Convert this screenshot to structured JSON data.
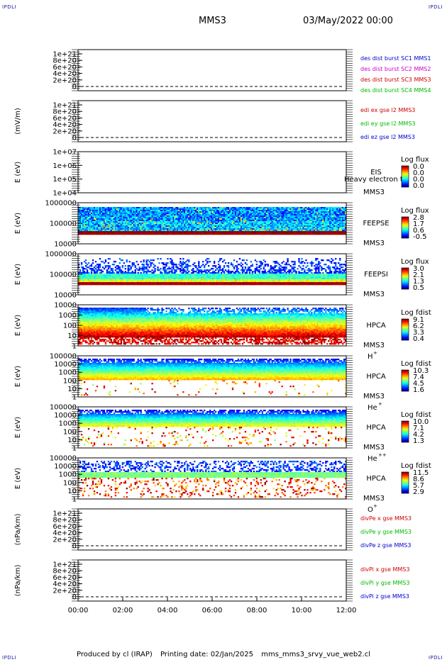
{
  "corners": {
    "top_left": "IPDLI",
    "top_right": "IPDLI",
    "bottom_left": "IPDLI",
    "bottom_right": "IPDLI"
  },
  "header": {
    "spacecraft": "MMS3",
    "datetime": "03/May/2022 00:00"
  },
  "footer": {
    "producer": "Produced by cl (IRAP)",
    "printing_date": "Printing date: 02/Jan/2025",
    "script": "mms_mms3_srvy_vue_web2.cl"
  },
  "colors": {
    "red": "#cc0000",
    "green": "#00bb00",
    "blue": "#0000cc",
    "magenta": "#cc00cc"
  },
  "chart_data": [
    {
      "type": "line",
      "id": "des-dist",
      "ylabel": "",
      "y_ticks": [
        "1e+21",
        "8e+20",
        "6e+20",
        "4e+20",
        "2e+20",
        "0"
      ],
      "legend": [
        {
          "label": "des dist burst SC1 MMS1",
          "color": "#0000cc"
        },
        {
          "label": "des dist burst SC2 MMS2",
          "color": "#cc00cc"
        },
        {
          "label": "des dist burst SC3 MMS3",
          "color": "#cc0000"
        },
        {
          "label": "des dist burst SC4 MMS4",
          "color": "#00bb00"
        }
      ]
    },
    {
      "type": "line",
      "id": "edi",
      "ylabel": "(mV/m)",
      "y_ticks": [
        "1e+21",
        "8e+20",
        "6e+20",
        "4e+20",
        "2e+20",
        "0"
      ],
      "legend": [
        {
          "label": "edi ex gse l2 MMS3",
          "color": "#cc0000"
        },
        {
          "label": "edi ey gse l2 MMS3",
          "color": "#00bb00"
        },
        {
          "label": "edi ez gse l2 MMS3",
          "color": "#0000cc"
        }
      ]
    },
    {
      "type": "heatmap",
      "id": "eis",
      "ylabel": "E (eV)",
      "y_ticks": [
        "1e+07",
        "1e+06",
        "1e+05",
        "1e+04"
      ],
      "instrument": [
        "EIS",
        "MMS3"
      ],
      "overlay_text": "Heavy electron to",
      "colorbar": {
        "title": "Log flux",
        "labels": [
          "0.0",
          "0.0",
          "0.0",
          "0.0"
        ]
      },
      "pattern": "empty"
    },
    {
      "type": "heatmap",
      "id": "feepse",
      "ylabel": "E (eV)",
      "y_ticks": [
        "1000000",
        "100000",
        "10000"
      ],
      "instrument": [
        "FEEPSE",
        "MMS3"
      ],
      "colorbar": {
        "title": "Log flux",
        "labels": [
          "2.8",
          "1.7",
          "0.6",
          "-0.5"
        ]
      },
      "pattern": "feeps_e"
    },
    {
      "type": "heatmap",
      "id": "feepsi",
      "ylabel": "E (eV)",
      "y_ticks": [
        "1000000",
        "100000",
        "10000"
      ],
      "instrument": [
        "FEEPSI",
        "MMS3"
      ],
      "colorbar": {
        "title": "Log flux",
        "labels": [
          "3.0",
          "2.1",
          "1.3",
          "0.5"
        ]
      },
      "pattern": "feeps_i"
    },
    {
      "type": "heatmap",
      "id": "hpca-h",
      "ylabel": "E (eV)",
      "y_ticks": [
        "10000",
        "1000",
        "100",
        "10",
        "1"
      ],
      "instrument": [
        "HPCA",
        "MMS3"
      ],
      "species": {
        "base": "H",
        "sup": "+"
      },
      "colorbar": {
        "title": "Log fdist",
        "labels": [
          "9.1",
          "6.2",
          "3.3",
          "0.4"
        ]
      },
      "pattern": "hpca_h"
    },
    {
      "type": "heatmap",
      "id": "hpca-he",
      "ylabel": "E (eV)",
      "y_ticks": [
        "100000",
        "10000",
        "1000",
        "100",
        "10",
        "1"
      ],
      "instrument": [
        "HPCA",
        "MMS3"
      ],
      "species": {
        "base": "He",
        "sup": "+"
      },
      "colorbar": {
        "title": "Log fdist",
        "labels": [
          "10.3",
          "7.4",
          "4.5",
          "1.6"
        ]
      },
      "pattern": "hpca_he"
    },
    {
      "type": "heatmap",
      "id": "hpca-hepp",
      "ylabel": "E (eV)",
      "y_ticks": [
        "100000",
        "10000",
        "1000",
        "100",
        "10",
        "1"
      ],
      "instrument": [
        "HPCA",
        "MMS3"
      ],
      "species": {
        "base": "He",
        "sup": "++"
      },
      "colorbar": {
        "title": "Log fdist",
        "labels": [
          "10.0",
          "7.1",
          "4.2",
          "1.3"
        ]
      },
      "pattern": "hpca_hepp"
    },
    {
      "type": "heatmap",
      "id": "hpca-o",
      "ylabel": "E (eV)",
      "y_ticks": [
        "100000",
        "10000",
        "1000",
        "100",
        "10",
        "1"
      ],
      "instrument": [
        "HPCA",
        "MMS3"
      ],
      "species": {
        "base": "O",
        "sup": "+"
      },
      "colorbar": {
        "title": "Log fdist",
        "labels": [
          "11.5",
          "8.6",
          "5.7",
          "2.9"
        ]
      },
      "pattern": "hpca_o"
    },
    {
      "type": "line",
      "id": "divpe",
      "ylabel": "(nPa/km)",
      "y_ticks": [
        "1e+21",
        "8e+20",
        "6e+20",
        "4e+20",
        "2e+20",
        "0"
      ],
      "legend": [
        {
          "label": "divPe x gse MMS3",
          "color": "#cc0000"
        },
        {
          "label": "divPe y gse MMS3",
          "color": "#00bb00"
        },
        {
          "label": "divPe z gse MMS3",
          "color": "#0000cc"
        }
      ]
    },
    {
      "type": "line",
      "id": "divpi",
      "ylabel": "(nPa/km)",
      "y_ticks": [
        "1e+21",
        "8e+20",
        "6e+20",
        "4e+20",
        "2e+20",
        "0"
      ],
      "legend": [
        {
          "label": "divPi x gse MMS3",
          "color": "#cc0000"
        },
        {
          "label": "divPi y gse MMS3",
          "color": "#00bb00"
        },
        {
          "label": "divPi z gse MMS3",
          "color": "#0000cc"
        }
      ]
    }
  ],
  "x_axis": {
    "ticks": [
      "00:00",
      "02:00",
      "04:00",
      "06:00",
      "08:00",
      "10:00",
      "12:00"
    ]
  }
}
